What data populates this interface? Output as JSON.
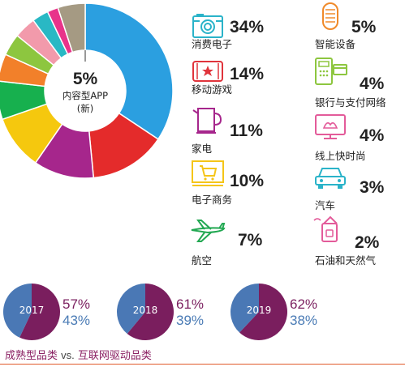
{
  "chart_data": [
    {
      "type": "pie",
      "variant": "donut",
      "title": "",
      "slices": [
        {
          "label": "消费电子",
          "value": 34,
          "pct_label": "34%",
          "color": "#2b9fe0",
          "icon": "camera-icon"
        },
        {
          "label": "移动游戏",
          "value": 14,
          "pct_label": "14%",
          "color": "#e42b2b",
          "icon": "mobile-game-icon"
        },
        {
          "label": "家电",
          "value": 11,
          "pct_label": "11%",
          "color": "#a6268c",
          "icon": "kettle-icon"
        },
        {
          "label": "电子商务",
          "value": 10,
          "pct_label": "10%",
          "color": "#f5c80e",
          "icon": "shopping-cart-icon"
        },
        {
          "label": "航空",
          "value": 7,
          "pct_label": "7%",
          "color": "#17b04e",
          "icon": "airplane-icon"
        },
        {
          "label": "智能设备",
          "value": 5,
          "pct_label": "5%",
          "color": "#f2802a",
          "icon": "smart-speaker-icon"
        },
        {
          "label": "银行与支付网络",
          "value": 4,
          "pct_label": "4%",
          "color": "#8dc63f",
          "icon": "payment-terminal-icon"
        },
        {
          "label": "线上快时尚",
          "value": 4,
          "pct_label": "4%",
          "color": "#f29aab",
          "icon": "fashion-screen-icon"
        },
        {
          "label": "汽车",
          "value": 3,
          "pct_label": "3%",
          "color": "#29b8c4",
          "icon": "car-icon"
        },
        {
          "label": "石油和天然气",
          "value": 2,
          "pct_label": "2%",
          "color": "#e8338a",
          "icon": "oil-can-icon"
        },
        {
          "label": "内容型APP",
          "label_sub": "(新)",
          "value": 5,
          "pct_label": "5%",
          "color": "#a59a83",
          "icon": ""
        }
      ],
      "accent_colors": {
        "outline": "#2ab3c9",
        "orange": "#f08a2a",
        "red": "#e0343c",
        "purple": "#a6268c",
        "yellow": "#f5c518",
        "green": "#22a852",
        "pink": "#e35b9a"
      }
    },
    {
      "type": "pie",
      "series_labels": {
        "mature": "成熟型品类",
        "vs": "vs.",
        "internet": "互联网驱动品类"
      },
      "colors": {
        "mature": "#7a1e5e",
        "internet": "#4a78b5"
      },
      "years": [
        {
          "year": "2017",
          "mature": 57,
          "internet": 43,
          "mature_label": "57%",
          "internet_label": "43%"
        },
        {
          "year": "2018",
          "mature": 61,
          "internet": 39,
          "mature_label": "61%",
          "internet_label": "39%"
        },
        {
          "year": "2019",
          "mature": 62,
          "internet": 38,
          "mature_label": "62%",
          "internet_label": "38%"
        }
      ]
    }
  ]
}
